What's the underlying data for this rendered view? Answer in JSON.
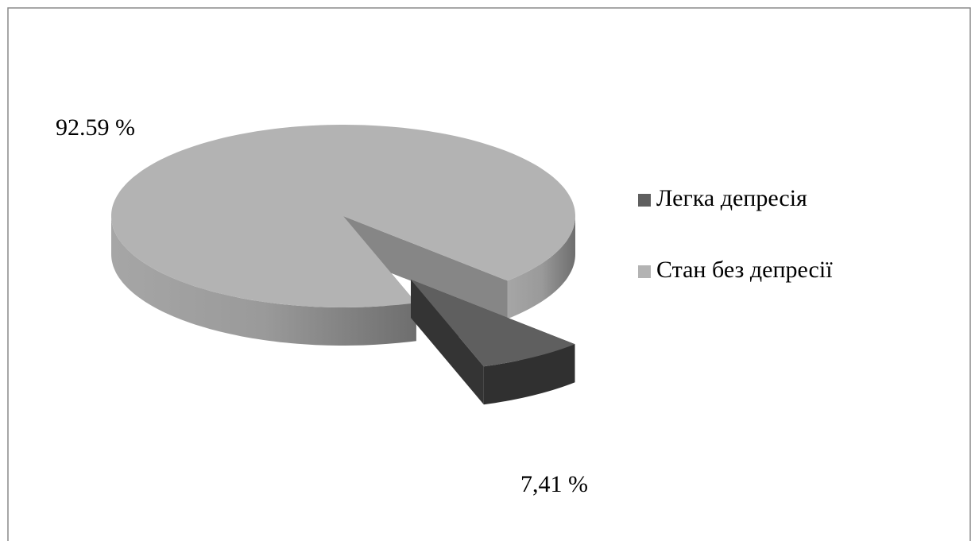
{
  "chart_data": {
    "type": "pie",
    "categories": [
      "Легка депресія",
      "Стан без депресії"
    ],
    "values": [
      7.41,
      92.59
    ],
    "value_labels": [
      "7,41 %",
      "92.59 %"
    ],
    "colors": [
      "#5f5f5f",
      "#b3b3b3"
    ],
    "legend": "right"
  }
}
